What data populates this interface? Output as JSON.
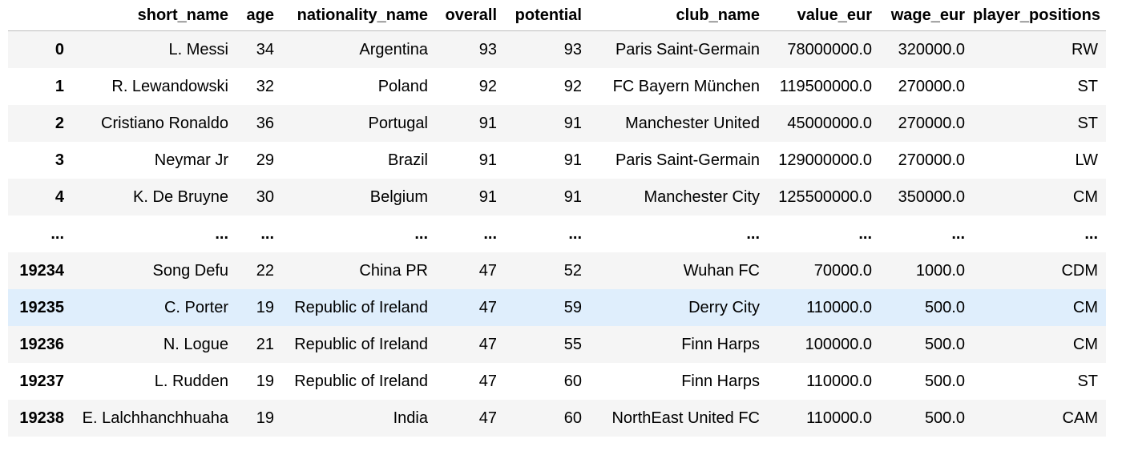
{
  "columns": {
    "index": "",
    "short_name": "short_name",
    "age": "age",
    "nationality_name": "nationality_name",
    "overall": "overall",
    "potential": "potential",
    "club_name": "club_name",
    "value_eur": "value_eur",
    "wage_eur": "wage_eur",
    "player_positions": "player_positions"
  },
  "rows": [
    {
      "index": "0",
      "short_name": "L. Messi",
      "age": "34",
      "nationality_name": "Argentina",
      "overall": "93",
      "potential": "93",
      "club_name": "Paris Saint-Germain",
      "value_eur": "78000000.0",
      "wage_eur": "320000.0",
      "player_positions": "RW"
    },
    {
      "index": "1",
      "short_name": "R. Lewandowski",
      "age": "32",
      "nationality_name": "Poland",
      "overall": "92",
      "potential": "92",
      "club_name": "FC Bayern München",
      "value_eur": "119500000.0",
      "wage_eur": "270000.0",
      "player_positions": "ST"
    },
    {
      "index": "2",
      "short_name": "Cristiano Ronaldo",
      "age": "36",
      "nationality_name": "Portugal",
      "overall": "91",
      "potential": "91",
      "club_name": "Manchester United",
      "value_eur": "45000000.0",
      "wage_eur": "270000.0",
      "player_positions": "ST"
    },
    {
      "index": "3",
      "short_name": "Neymar Jr",
      "age": "29",
      "nationality_name": "Brazil",
      "overall": "91",
      "potential": "91",
      "club_name": "Paris Saint-Germain",
      "value_eur": "129000000.0",
      "wage_eur": "270000.0",
      "player_positions": "LW"
    },
    {
      "index": "4",
      "short_name": "K. De Bruyne",
      "age": "30",
      "nationality_name": "Belgium",
      "overall": "91",
      "potential": "91",
      "club_name": "Manchester City",
      "value_eur": "125500000.0",
      "wage_eur": "350000.0",
      "player_positions": "CM"
    },
    {
      "index": "...",
      "short_name": "...",
      "age": "...",
      "nationality_name": "...",
      "overall": "...",
      "potential": "...",
      "club_name": "...",
      "value_eur": "...",
      "wage_eur": "...",
      "player_positions": "..."
    },
    {
      "index": "19234",
      "short_name": "Song Defu",
      "age": "22",
      "nationality_name": "China PR",
      "overall": "47",
      "potential": "52",
      "club_name": "Wuhan FC",
      "value_eur": "70000.0",
      "wage_eur": "1000.0",
      "player_positions": "CDM"
    },
    {
      "index": "19235",
      "short_name": "C. Porter",
      "age": "19",
      "nationality_name": "Republic of Ireland",
      "overall": "47",
      "potential": "59",
      "club_name": "Derry City",
      "value_eur": "110000.0",
      "wage_eur": "500.0",
      "player_positions": "CM"
    },
    {
      "index": "19236",
      "short_name": "N. Logue",
      "age": "21",
      "nationality_name": "Republic of Ireland",
      "overall": "47",
      "potential": "55",
      "club_name": "Finn Harps",
      "value_eur": "100000.0",
      "wage_eur": "500.0",
      "player_positions": "CM"
    },
    {
      "index": "19237",
      "short_name": "L. Rudden",
      "age": "19",
      "nationality_name": "Republic of Ireland",
      "overall": "47",
      "potential": "60",
      "club_name": "Finn Harps",
      "value_eur": "110000.0",
      "wage_eur": "500.0",
      "player_positions": "ST"
    },
    {
      "index": "19238",
      "short_name": "E. Lalchhanchhuaha",
      "age": "19",
      "nationality_name": "India",
      "overall": "47",
      "potential": "60",
      "club_name": "NorthEast United FC",
      "value_eur": "110000.0",
      "wage_eur": "500.0",
      "player_positions": "CAM"
    }
  ],
  "colors": {
    "stripe": "#f5f5f5",
    "hover": "#dfeefc",
    "header_rule": "#bdbdbd"
  }
}
